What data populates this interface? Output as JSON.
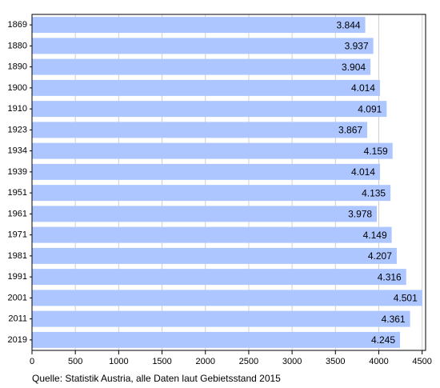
{
  "chart_data": {
    "type": "bar",
    "orientation": "horizontal",
    "categories": [
      "1869",
      "1880",
      "1890",
      "1900",
      "1910",
      "1923",
      "1934",
      "1939",
      "1951",
      "1961",
      "1971",
      "1981",
      "1991",
      "2001",
      "2011",
      "2019"
    ],
    "values": [
      3844,
      3937,
      3904,
      4014,
      4091,
      3867,
      4159,
      4014,
      4135,
      3978,
      4149,
      4207,
      4316,
      4501,
      4361,
      4245
    ],
    "value_labels": [
      "3.844",
      "3.937",
      "3.904",
      "4.014",
      "4.091",
      "3.867",
      "4.159",
      "4.014",
      "4.135",
      "3.978",
      "4.149",
      "4.207",
      "4.316",
      "4.501",
      "4.361",
      "4.245"
    ],
    "color": "#adc6ff",
    "xlim": [
      0,
      4540
    ],
    "xticks": [
      0,
      500,
      1000,
      1500,
      2000,
      2500,
      3000,
      3500,
      4000,
      4500
    ],
    "grid": true,
    "source": "Quelle: Statistik Austria, alle Daten laut Gebietsstand 2015"
  }
}
